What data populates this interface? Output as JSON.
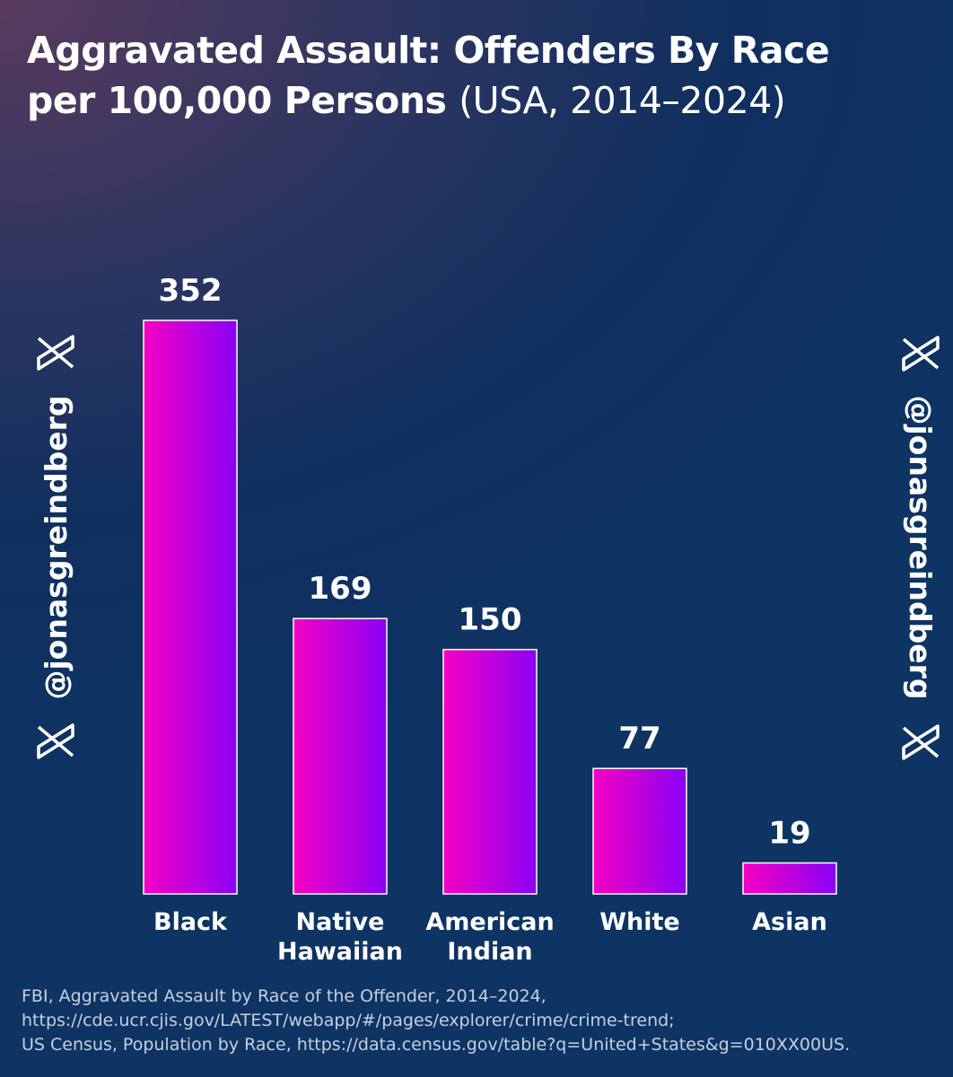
{
  "title": {
    "line1": "Aggravated Assault: Offenders By Race",
    "line2_bold": "per 100,000 Persons",
    "line2_rest": "(USA, 2014–2024)"
  },
  "watermark": {
    "handle": "@jonasgreindberg",
    "icon": "x-logo-icon"
  },
  "source_lines": [
    "FBI, Aggravated Assault by Race of the Offender, 2014–2024,",
    "https://cde.ucr.cjis.gov/LATEST/webapp/#/pages/explorer/crime/crime-trend;",
    "US Census, Population by Race, https://data.census.gov/table?q=United+States&g=010XX00US."
  ],
  "colors": {
    "bar_gradient_start": "#f500c4",
    "bar_gradient_end": "#8a00f5",
    "bar_outline": "#ffffff",
    "text": "#ffffff"
  },
  "chart_data": {
    "type": "bar",
    "categories": [
      [
        "Black"
      ],
      [
        "Native",
        "Hawaiian"
      ],
      [
        "American",
        "Indian"
      ],
      [
        "White"
      ],
      [
        "Asian"
      ]
    ],
    "values": [
      352,
      169,
      150,
      77,
      19
    ],
    "data_labels": [
      "352",
      "169",
      "150",
      "77",
      "19"
    ],
    "title": "Aggravated Assault: Offenders By Race per 100,000 Persons (USA, 2014–2024)",
    "ylim": [
      0,
      352
    ],
    "grid": false,
    "legend": "none",
    "axes_visible": false
  }
}
